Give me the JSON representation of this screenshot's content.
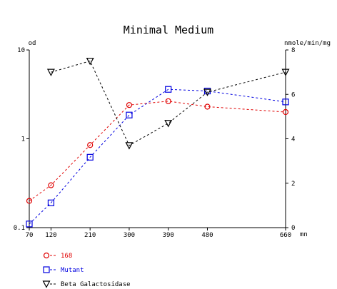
{
  "chart_data": {
    "type": "line",
    "title": "Minimal Medium",
    "xlabel": "mn",
    "ylabel_left": "od",
    "ylabel_right": "nmole/min/mg",
    "x": [
      70,
      120,
      210,
      300,
      390,
      480,
      660
    ],
    "x_ticks": [
      70,
      120,
      210,
      300,
      390,
      480,
      660
    ],
    "xlim": [
      70,
      660
    ],
    "y_left_scale": "log",
    "y_left_lim": [
      0.1,
      10
    ],
    "y_left_ticks": [
      "10",
      "1",
      "0.1"
    ],
    "y_right_lim": [
      0,
      8
    ],
    "y_right_ticks": [
      "8",
      "6",
      "4",
      "2",
      "0"
    ],
    "grid": false,
    "legend_position": "bottom-left",
    "series": [
      {
        "name": "168",
        "axis": "left",
        "marker": "circle",
        "color": "#e00000",
        "x": [
          70,
          120,
          210,
          300,
          390,
          480,
          660
        ],
        "values": [
          0.2,
          0.3,
          0.85,
          2.4,
          2.65,
          2.3,
          2.0
        ]
      },
      {
        "name": "Mutant",
        "axis": "left",
        "marker": "square",
        "color": "#0000e0",
        "x": [
          70,
          120,
          210,
          300,
          390,
          480,
          660
        ],
        "values": [
          0.11,
          0.19,
          0.62,
          1.85,
          3.6,
          3.45,
          2.6
        ]
      },
      {
        "name": "Beta Galactosidase",
        "axis": "right",
        "marker": "triangle-down",
        "color": "#000000",
        "x": [
          120,
          210,
          300,
          390,
          480,
          660
        ],
        "values": [
          7.0,
          7.5,
          3.7,
          4.7,
          6.1,
          7.0
        ]
      }
    ]
  }
}
